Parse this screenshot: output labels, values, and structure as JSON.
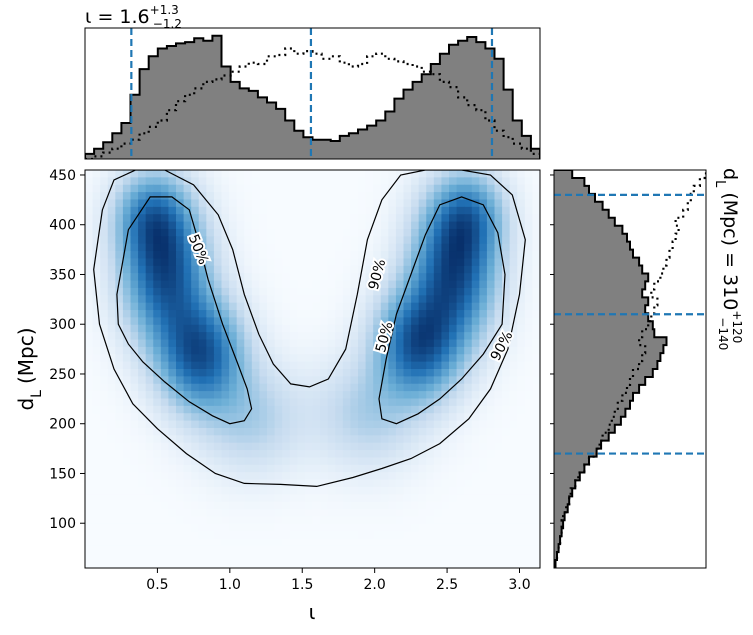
{
  "chart_data": [
    {
      "type": "heatmap",
      "name": "joint-posterior",
      "xlabel_symbol": "ι",
      "ylabel_base": "d",
      "ylabel_sub": "L",
      "ylabel_unit": "(Mpc)",
      "xlim": [
        0.0,
        3.1416
      ],
      "ylim": [
        55,
        455
      ],
      "xticks": [
        0.5,
        1.0,
        1.5,
        2.0,
        2.5,
        3.0
      ],
      "xtick_labels": [
        "0.5",
        "1.0",
        "1.5",
        "2.0",
        "2.5",
        "3.0"
      ],
      "yticks": [
        100,
        150,
        200,
        250,
        300,
        350,
        400,
        450
      ],
      "ytick_labels": [
        "100",
        "150",
        "200",
        "250",
        "300",
        "350",
        "400",
        "450"
      ],
      "colormap": "Blues",
      "density_modes": [
        {
          "x": 0.55,
          "y": 355,
          "sx": 0.2,
          "sy": 48,
          "weight": 1.0
        },
        {
          "x": 0.8,
          "y": 270,
          "sx": 0.2,
          "sy": 38,
          "weight": 0.95
        },
        {
          "x": 0.45,
          "y": 410,
          "sx": 0.17,
          "sy": 30,
          "weight": 0.55
        },
        {
          "x": 2.55,
          "y": 355,
          "sx": 0.2,
          "sy": 48,
          "weight": 1.0
        },
        {
          "x": 2.3,
          "y": 280,
          "sx": 0.2,
          "sy": 38,
          "weight": 0.95
        },
        {
          "x": 2.65,
          "y": 410,
          "sx": 0.17,
          "sy": 30,
          "weight": 0.55
        },
        {
          "x": 1.15,
          "y": 205,
          "sx": 0.25,
          "sy": 38,
          "weight": 0.3
        },
        {
          "x": 1.95,
          "y": 210,
          "sx": 0.25,
          "sy": 38,
          "weight": 0.3
        }
      ],
      "contours": [
        {
          "level": "50%",
          "labels": [
            {
              "text": "50%",
              "x": 0.78,
              "y": 375,
              "angle": 68
            }
          ],
          "x": [
            0.22,
            0.3,
            0.45,
            0.6,
            0.72,
            0.78,
            0.85,
            0.95,
            1.05,
            1.12,
            1.15,
            1.1,
            1.0,
            0.88,
            0.72,
            0.55,
            0.4,
            0.3,
            0.23,
            0.22
          ],
          "y": [
            330,
            395,
            428,
            428,
            415,
            385,
            345,
            300,
            262,
            235,
            215,
            203,
            200,
            208,
            222,
            242,
            262,
            280,
            300,
            330
          ]
        },
        {
          "level": "50%",
          "labels": [
            {
              "text": "50%",
              "x": 2.07,
              "y": 287,
              "angle": -75
            }
          ],
          "x": [
            2.03,
            2.05,
            2.15,
            2.3,
            2.45,
            2.6,
            2.75,
            2.88,
            2.9,
            2.85,
            2.75,
            2.6,
            2.45,
            2.35,
            2.25,
            2.15,
            2.08,
            2.03
          ],
          "y": [
            225,
            205,
            200,
            210,
            225,
            245,
            270,
            300,
            350,
            392,
            420,
            428,
            420,
            390,
            350,
            310,
            265,
            225
          ]
        },
        {
          "level": "90%",
          "labels": [
            {
              "text": "90%",
              "x": 2.02,
              "y": 350,
              "angle": -75
            },
            {
              "text": "90%",
              "x": 2.88,
              "y": 278,
              "angle": -62
            }
          ],
          "x": [
            0.12,
            0.2,
            0.35,
            0.55,
            0.75,
            0.92,
            1.02,
            1.1,
            1.2,
            1.3,
            1.42,
            1.55,
            1.68,
            1.8,
            1.88,
            1.95,
            2.05,
            2.18,
            2.35,
            2.6,
            2.8,
            2.95,
            3.04,
            3.0,
            2.92,
            2.8,
            2.65,
            2.45,
            2.25,
            2.05,
            1.85,
            1.6,
            1.35,
            1.1,
            0.9,
            0.7,
            0.5,
            0.33,
            0.2,
            0.1,
            0.06,
            0.12
          ],
          "y": [
            415,
            445,
            455,
            455,
            440,
            410,
            375,
            330,
            290,
            260,
            240,
            237,
            245,
            275,
            330,
            385,
            425,
            450,
            455,
            455,
            450,
            430,
            385,
            330,
            275,
            235,
            205,
            180,
            165,
            155,
            146,
            137,
            139,
            140,
            150,
            170,
            195,
            220,
            255,
            300,
            355,
            415
          ]
        }
      ]
    },
    {
      "type": "histogram",
      "name": "iota-marginal",
      "title_prefix": "ι = 1.6",
      "title_sup": "+1.3",
      "title_sub": "−1.2",
      "bin_edges_range": [
        0.0,
        3.1416
      ],
      "bin_count": 50,
      "ylim": [
        0,
        1.02
      ],
      "filled_values": [
        0.04,
        0.08,
        0.13,
        0.2,
        0.28,
        0.5,
        0.7,
        0.8,
        0.86,
        0.88,
        0.9,
        0.91,
        0.94,
        0.92,
        0.96,
        0.72,
        0.6,
        0.55,
        0.53,
        0.48,
        0.44,
        0.39,
        0.3,
        0.22,
        0.17,
        0.15,
        0.15,
        0.14,
        0.18,
        0.2,
        0.23,
        0.26,
        0.3,
        0.37,
        0.47,
        0.54,
        0.6,
        0.66,
        0.74,
        0.82,
        0.89,
        0.92,
        0.95,
        0.91,
        0.86,
        0.78,
        0.54,
        0.3,
        0.18,
        0.08
      ],
      "dotted_values": [
        0.0,
        0.02,
        0.05,
        0.08,
        0.12,
        0.15,
        0.2,
        0.25,
        0.3,
        0.38,
        0.45,
        0.5,
        0.55,
        0.6,
        0.62,
        0.65,
        0.68,
        0.72,
        0.75,
        0.74,
        0.8,
        0.81,
        0.86,
        0.82,
        0.84,
        0.82,
        0.78,
        0.8,
        0.75,
        0.72,
        0.74,
        0.8,
        0.82,
        0.78,
        0.76,
        0.74,
        0.72,
        0.68,
        0.66,
        0.6,
        0.56,
        0.48,
        0.42,
        0.38,
        0.3,
        0.22,
        0.17,
        0.12,
        0.08,
        0.04
      ],
      "dashed_lines": [
        0.32,
        1.56,
        2.81
      ]
    },
    {
      "type": "histogram",
      "name": "distance-marginal",
      "orientation": "horizontal",
      "label_base": "d",
      "label_sub": "L",
      "label_mid": "(Mpc) = 310",
      "label_sup": "+120",
      "label_subscript": "−140",
      "bin_edges_range": [
        55,
        455
      ],
      "bin_count": 50,
      "xlim": [
        0,
        1.0
      ],
      "filled_values": [
        0.01,
        0.02,
        0.03,
        0.04,
        0.05,
        0.06,
        0.07,
        0.09,
        0.1,
        0.12,
        0.14,
        0.17,
        0.2,
        0.23,
        0.28,
        0.31,
        0.36,
        0.4,
        0.44,
        0.47,
        0.5,
        0.52,
        0.56,
        0.6,
        0.65,
        0.68,
        0.7,
        0.72,
        0.74,
        0.66,
        0.65,
        0.62,
        0.6,
        0.62,
        0.58,
        0.6,
        0.62,
        0.58,
        0.56,
        0.52,
        0.5,
        0.48,
        0.45,
        0.4,
        0.36,
        0.32,
        0.27,
        0.23,
        0.2,
        0.12
      ],
      "dotted_values": [
        0.0,
        0.02,
        0.03,
        0.04,
        0.05,
        0.05,
        0.06,
        0.08,
        0.1,
        0.11,
        0.14,
        0.16,
        0.2,
        0.23,
        0.28,
        0.3,
        0.32,
        0.36,
        0.38,
        0.4,
        0.42,
        0.45,
        0.48,
        0.5,
        0.52,
        0.56,
        0.58,
        0.6,
        0.56,
        0.58,
        0.62,
        0.64,
        0.66,
        0.68,
        0.64,
        0.66,
        0.7,
        0.72,
        0.74,
        0.76,
        0.78,
        0.8,
        0.82,
        0.8,
        0.85,
        0.88,
        0.9,
        0.92,
        0.96,
        1.0
      ],
      "dashed_lines": [
        170,
        310,
        430
      ]
    }
  ],
  "colors": {
    "hist_fill": "#808080",
    "hist_edge": "#000000",
    "dashed": "#1f77b4",
    "contour": "#000000"
  }
}
